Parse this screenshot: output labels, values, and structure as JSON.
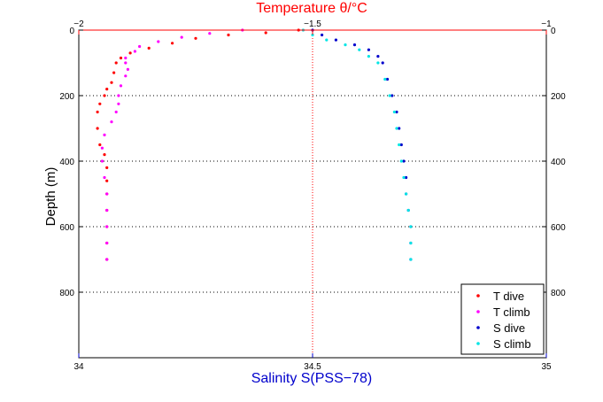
{
  "chart_data": {
    "type": "scatter",
    "title": "Temperature θ/°C",
    "xlabel": "Salinity S(PSS−78)",
    "ylabel": "Depth (m)",
    "colors": {
      "top_axis": "#ff0000",
      "bottom_axis": "#0000cc",
      "grid": "#000000",
      "midline": "#ff0000"
    },
    "top_axis": {
      "label": "Temperature θ/°C",
      "range": [
        -2,
        -1
      ],
      "ticks": [
        {
          "value": -2,
          "label": "−2"
        },
        {
          "value": -1.5,
          "label": "−1.5"
        },
        {
          "value": -1,
          "label": "−1"
        }
      ]
    },
    "bottom_axis": {
      "label": "Salinity S(PSS−78)",
      "range": [
        34,
        35
      ],
      "ticks": [
        {
          "value": 34,
          "label": "34"
        },
        {
          "value": 34.5,
          "label": "34.5"
        },
        {
          "value": 35,
          "label": "35"
        }
      ]
    },
    "y_axis": {
      "label": "Depth (m)",
      "range": [
        0,
        1000
      ],
      "inverted": true,
      "ticks": [
        {
          "value": 0,
          "label": "0"
        },
        {
          "value": 200,
          "label": "200"
        },
        {
          "value": 400,
          "label": "400"
        },
        {
          "value": 600,
          "label": "600"
        },
        {
          "value": 800,
          "label": "800"
        }
      ]
    },
    "grid": "dotted horizontal at depth ticks, dotted vertical at mid value",
    "legend": {
      "position": "bottom-right"
    },
    "series": [
      {
        "name": "T dive",
        "axis": "top",
        "color": "#ff0000",
        "points": [
          [
            -1.53,
            0
          ],
          [
            -1.6,
            8
          ],
          [
            -1.68,
            15
          ],
          [
            -1.75,
            25
          ],
          [
            -1.8,
            40
          ],
          [
            -1.85,
            55
          ],
          [
            -1.89,
            70
          ],
          [
            -1.91,
            85
          ],
          [
            -1.92,
            100
          ],
          [
            -1.925,
            130
          ],
          [
            -1.93,
            160
          ],
          [
            -1.94,
            180
          ],
          [
            -1.945,
            200
          ],
          [
            -1.955,
            225
          ],
          [
            -1.96,
            250
          ],
          [
            -1.96,
            300
          ],
          [
            -1.955,
            350
          ],
          [
            -1.945,
            380
          ],
          [
            -1.94,
            420
          ],
          [
            -1.94,
            460
          ],
          [
            -1.94,
            500
          ],
          [
            -1.94,
            550
          ],
          [
            -1.94,
            600
          ],
          [
            -1.94,
            650
          ],
          [
            -1.94,
            700
          ]
        ]
      },
      {
        "name": "T climb",
        "axis": "top",
        "color": "#ff00ff",
        "points": [
          [
            -1.65,
            0
          ],
          [
            -1.72,
            10
          ],
          [
            -1.78,
            22
          ],
          [
            -1.83,
            35
          ],
          [
            -1.87,
            50
          ],
          [
            -1.88,
            65
          ],
          [
            -1.9,
            85
          ],
          [
            -1.9,
            100
          ],
          [
            -1.895,
            120
          ],
          [
            -1.9,
            140
          ],
          [
            -1.91,
            170
          ],
          [
            -1.915,
            200
          ],
          [
            -1.915,
            225
          ],
          [
            -1.92,
            250
          ],
          [
            -1.93,
            280
          ],
          [
            -1.945,
            320
          ],
          [
            -1.95,
            360
          ],
          [
            -1.95,
            400
          ],
          [
            -1.945,
            450
          ],
          [
            -1.94,
            500
          ],
          [
            -1.94,
            550
          ],
          [
            -1.94,
            600
          ],
          [
            -1.94,
            650
          ],
          [
            -1.94,
            700
          ]
        ]
      },
      {
        "name": "S dive",
        "axis": "bottom",
        "color": "#0000cc",
        "points": [
          [
            34.5,
            0
          ],
          [
            34.52,
            15
          ],
          [
            34.55,
            30
          ],
          [
            34.59,
            45
          ],
          [
            34.62,
            60
          ],
          [
            34.64,
            80
          ],
          [
            34.65,
            100
          ],
          [
            34.66,
            150
          ],
          [
            34.67,
            200
          ],
          [
            34.68,
            250
          ],
          [
            34.685,
            300
          ],
          [
            34.69,
            350
          ],
          [
            34.695,
            400
          ],
          [
            34.7,
            450
          ],
          [
            34.7,
            500
          ],
          [
            34.705,
            550
          ],
          [
            34.71,
            600
          ],
          [
            34.71,
            650
          ],
          [
            34.71,
            700
          ]
        ]
      },
      {
        "name": "S climb",
        "axis": "bottom",
        "color": "#00e5e5",
        "points": [
          [
            34.48,
            0
          ],
          [
            34.5,
            15
          ],
          [
            34.53,
            30
          ],
          [
            34.57,
            45
          ],
          [
            34.6,
            60
          ],
          [
            34.62,
            80
          ],
          [
            34.64,
            100
          ],
          [
            34.655,
            150
          ],
          [
            34.665,
            200
          ],
          [
            34.675,
            250
          ],
          [
            34.68,
            300
          ],
          [
            34.685,
            350
          ],
          [
            34.69,
            400
          ],
          [
            34.695,
            450
          ],
          [
            34.7,
            500
          ],
          [
            34.705,
            550
          ],
          [
            34.71,
            600
          ],
          [
            34.71,
            650
          ],
          [
            34.71,
            700
          ]
        ]
      }
    ]
  }
}
